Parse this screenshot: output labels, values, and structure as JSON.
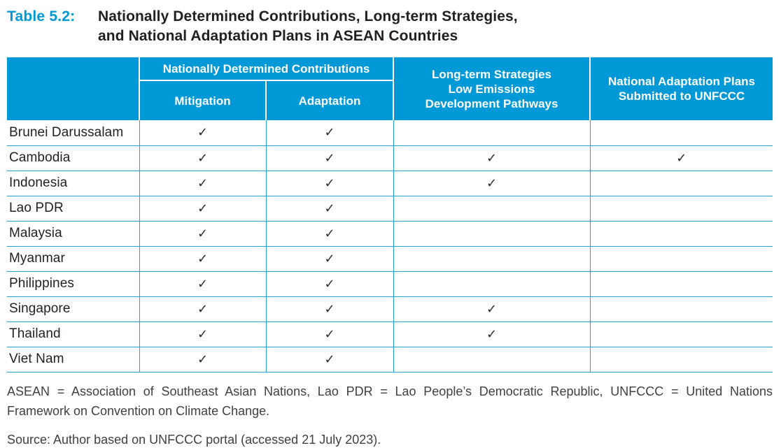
{
  "title": {
    "label": "Table 5.2:",
    "text": "Nationally Determined Contributions, Long-term Strategies,\nand National Adaptation Plans in ASEAN Countries"
  },
  "table": {
    "group_headers": {
      "ndc": "Nationally Determined Contributions",
      "lts": "Long-term Strategies\nLow Emissions\nDevelopment Pathways",
      "nap": "National Adaptation Plans\nSubmitted to UNFCCC"
    },
    "sub_headers": {
      "mitigation": "Mitigation",
      "adaptation": "Adaptation"
    },
    "check_glyph": "✓",
    "rows": [
      {
        "country": "Brunei Darussalam",
        "mitigation": true,
        "adaptation": true,
        "lts": false,
        "nap": false
      },
      {
        "country": "Cambodia",
        "mitigation": true,
        "adaptation": true,
        "lts": true,
        "nap": true
      },
      {
        "country": "Indonesia",
        "mitigation": true,
        "adaptation": true,
        "lts": true,
        "nap": false
      },
      {
        "country": "Lao PDR",
        "mitigation": true,
        "adaptation": true,
        "lts": false,
        "nap": false
      },
      {
        "country": "Malaysia",
        "mitigation": true,
        "adaptation": true,
        "lts": false,
        "nap": false
      },
      {
        "country": "Myanmar",
        "mitigation": true,
        "adaptation": true,
        "lts": false,
        "nap": false
      },
      {
        "country": "Philippines",
        "mitigation": true,
        "adaptation": true,
        "lts": false,
        "nap": false
      },
      {
        "country": "Singapore",
        "mitigation": true,
        "adaptation": true,
        "lts": true,
        "nap": false
      },
      {
        "country": "Thailand",
        "mitigation": true,
        "adaptation": true,
        "lts": true,
        "nap": false
      },
      {
        "country": "Viet Nam",
        "mitigation": true,
        "adaptation": true,
        "lts": false,
        "nap": false
      }
    ]
  },
  "footnotes": {
    "abbreviations_line1": "ASEAN = Association of Southeast Asian Nations, Lao PDR = Lao People’s Democratic Republic, UNFCCC = United Nations",
    "abbreviations_line2": "Framework on Convention on Climate Change.",
    "source": "Source: Author based on UNFCCC portal (accessed 21 July 2023)."
  },
  "colors": {
    "header_fill": "#0099D8",
    "title_accent": "#0099D8",
    "row_border": "#25A1DA",
    "body_text": "#231F20",
    "footnote_text": "#414042",
    "header_text": "#FFFFFF"
  }
}
